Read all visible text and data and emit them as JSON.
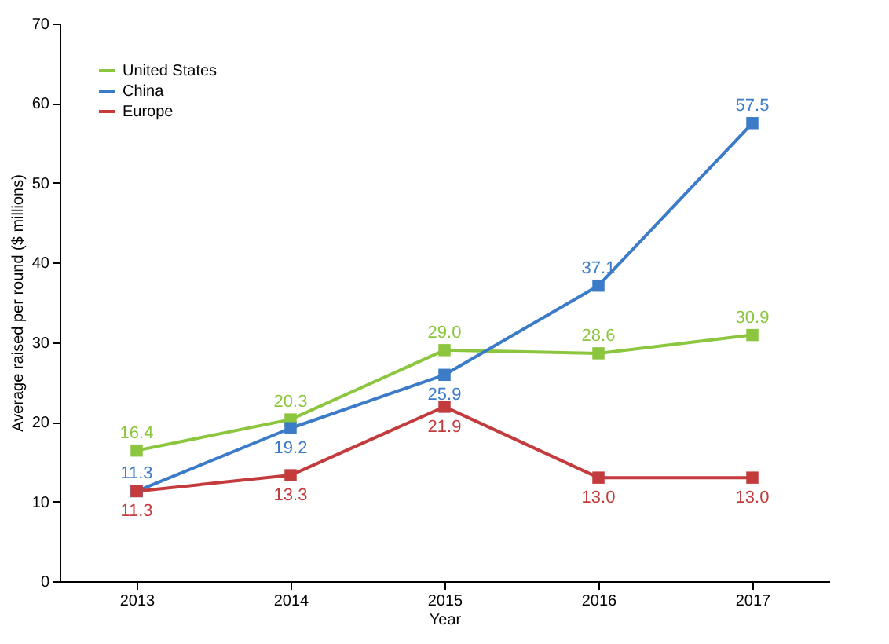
{
  "chart_data": {
    "type": "line",
    "xlabel": "Year",
    "ylabel": "Average raised per round ($ millions)",
    "categories": [
      "2013",
      "2014",
      "2015",
      "2016",
      "2017"
    ],
    "series": [
      {
        "name": "United States",
        "color": "#8cc63e",
        "values": [
          16.4,
          20.3,
          29.0,
          28.6,
          30.9
        ],
        "value_labels": [
          "16.4",
          "20.3",
          "29.0",
          "28.6",
          "30.9"
        ]
      },
      {
        "name": "China",
        "color": "#3b7bc8",
        "values": [
          11.3,
          19.2,
          25.9,
          37.1,
          57.5
        ],
        "value_labels": [
          "11.3",
          "19.2",
          "25.9",
          "37.1",
          "57.5"
        ]
      },
      {
        "name": "Europe",
        "color": "#c33b3d",
        "values": [
          11.3,
          13.3,
          21.9,
          13.0,
          13.0
        ],
        "value_labels": [
          "11.3",
          "13.3",
          "21.9",
          "13.0",
          "13.0"
        ]
      }
    ],
    "ylim": [
      0,
      70
    ],
    "yticks": [
      0,
      10,
      20,
      30,
      40,
      50,
      60,
      70
    ],
    "grid": false,
    "legend": "top left",
    "marker": "square",
    "line_style": "solid"
  }
}
